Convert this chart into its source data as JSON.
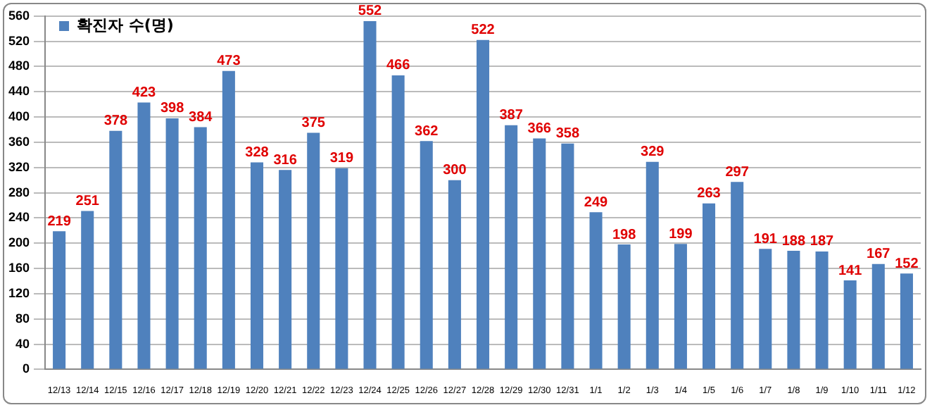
{
  "chart_data": {
    "type": "bar",
    "categories": [
      "12/13",
      "12/14",
      "12/15",
      "12/16",
      "12/17",
      "12/18",
      "12/19",
      "12/20",
      "12/21",
      "12/22",
      "12/23",
      "12/24",
      "12/25",
      "12/26",
      "12/27",
      "12/28",
      "12/29",
      "12/30",
      "12/31",
      "1/1",
      "1/2",
      "1/3",
      "1/4",
      "1/5",
      "1/6",
      "1/7",
      "1/8",
      "1/9",
      "1/10",
      "1/11",
      "1/12"
    ],
    "series": [
      {
        "name": "확진자 수(명)",
        "color": "#4f81bd",
        "values": [
          219,
          251,
          378,
          423,
          398,
          384,
          473,
          328,
          316,
          375,
          319,
          552,
          466,
          362,
          300,
          522,
          387,
          366,
          358,
          249,
          198,
          329,
          199,
          263,
          297,
          191,
          188,
          187,
          141,
          167,
          152
        ]
      }
    ],
    "ylim": [
      0,
      560
    ],
    "yticks": [
      0,
      40,
      80,
      120,
      160,
      200,
      240,
      280,
      320,
      360,
      400,
      440,
      480,
      520,
      560
    ],
    "grid": "y",
    "legend": "top left",
    "data_labels": true
  }
}
